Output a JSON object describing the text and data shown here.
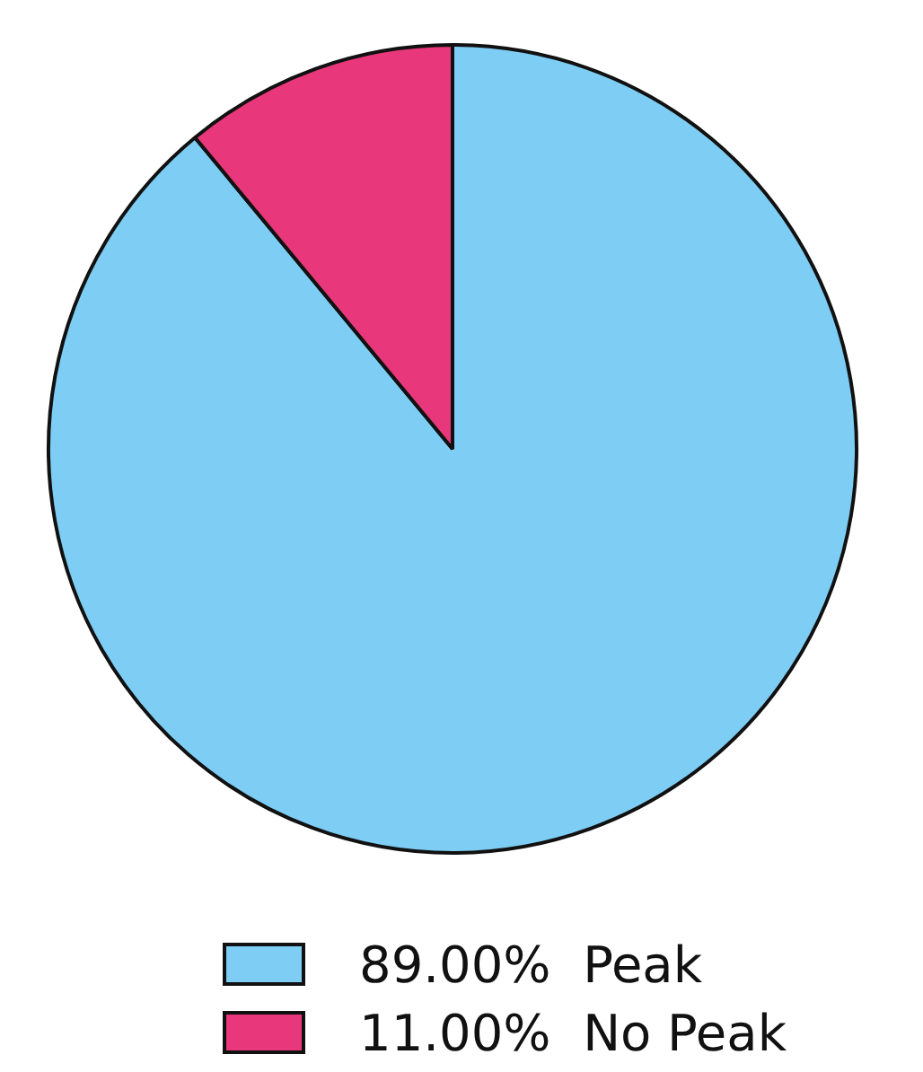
{
  "chart_data": {
    "type": "pie",
    "categories": [
      "Peak",
      "No Peak"
    ],
    "values": [
      89,
      11
    ],
    "value_labels": [
      "89.00%",
      "11.00%"
    ],
    "colors": [
      "#7ecdf4",
      "#e8377a"
    ],
    "legend": "bottom"
  }
}
